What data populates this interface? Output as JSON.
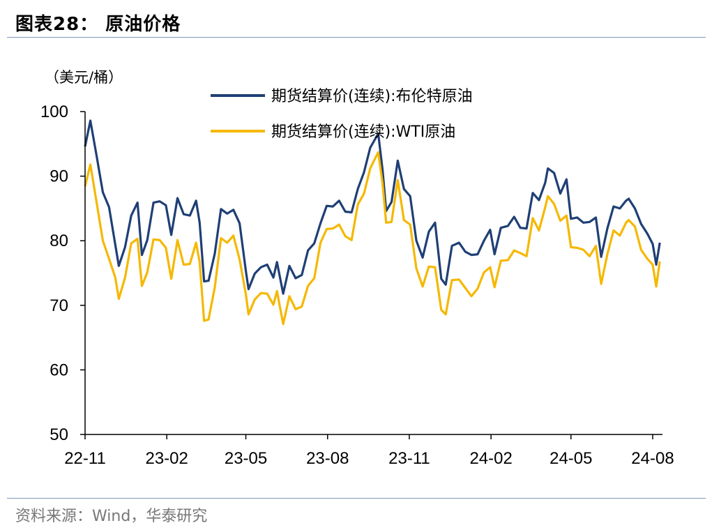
{
  "figure": {
    "title": "图表28：  原油价格",
    "source": "资料来源：Wind，华泰研究"
  },
  "colors": {
    "brent": "#1f3f75",
    "wti": "#f5b800",
    "axis": "#000000",
    "rule": "#7f98b8"
  },
  "chart_data": {
    "type": "line",
    "title": "",
    "ylabel": "（美元/桶）",
    "xlabel": "",
    "ylim": [
      50,
      100
    ],
    "yticks": [
      50,
      60,
      70,
      80,
      90,
      100
    ],
    "xlim": [
      "2022-11-01",
      "2024-08-12"
    ],
    "xticks": [
      {
        "date": "2022-11-01",
        "label": "22-11"
      },
      {
        "date": "2023-02-01",
        "label": "23-02"
      },
      {
        "date": "2023-05-01",
        "label": "23-05"
      },
      {
        "date": "2023-08-01",
        "label": "23-08"
      },
      {
        "date": "2023-11-01",
        "label": "23-11"
      },
      {
        "date": "2024-02-01",
        "label": "24-02"
      },
      {
        "date": "2024-05-01",
        "label": "24-05"
      },
      {
        "date": "2024-08-01",
        "label": "24-08"
      }
    ],
    "grid": false,
    "legend": "top-center",
    "series": [
      {
        "name": "期货结算价(连续):布伦特原油",
        "color": "#1f3f75",
        "points": [
          [
            "2022-11-01",
            94.6
          ],
          [
            "2022-11-07",
            98.6
          ],
          [
            "2022-11-14",
            93.1
          ],
          [
            "2022-11-21",
            87.5
          ],
          [
            "2022-11-28",
            85.2
          ],
          [
            "2022-12-05",
            79.4
          ],
          [
            "2022-12-09",
            76.1
          ],
          [
            "2022-12-16",
            79.0
          ],
          [
            "2022-12-23",
            83.9
          ],
          [
            "2022-12-30",
            85.9
          ],
          [
            "2023-01-04",
            77.8
          ],
          [
            "2023-01-10",
            80.1
          ],
          [
            "2023-01-17",
            85.9
          ],
          [
            "2023-01-24",
            86.1
          ],
          [
            "2023-01-31",
            85.5
          ],
          [
            "2023-02-06",
            80.9
          ],
          [
            "2023-02-13",
            86.6
          ],
          [
            "2023-02-20",
            84.1
          ],
          [
            "2023-02-27",
            83.9
          ],
          [
            "2023-03-06",
            86.2
          ],
          [
            "2023-03-10",
            82.8
          ],
          [
            "2023-03-15",
            73.7
          ],
          [
            "2023-03-20",
            73.8
          ],
          [
            "2023-03-27",
            78.0
          ],
          [
            "2023-04-03",
            84.9
          ],
          [
            "2023-04-10",
            84.2
          ],
          [
            "2023-04-17",
            84.8
          ],
          [
            "2023-04-24",
            82.7
          ],
          [
            "2023-05-01",
            75.3
          ],
          [
            "2023-05-04",
            72.5
          ],
          [
            "2023-05-11",
            74.9
          ],
          [
            "2023-05-18",
            75.9
          ],
          [
            "2023-05-25",
            76.3
          ],
          [
            "2023-06-01",
            74.3
          ],
          [
            "2023-06-05",
            76.7
          ],
          [
            "2023-06-12",
            71.8
          ],
          [
            "2023-06-19",
            76.1
          ],
          [
            "2023-06-26",
            74.2
          ],
          [
            "2023-07-03",
            74.7
          ],
          [
            "2023-07-10",
            78.5
          ],
          [
            "2023-07-17",
            79.6
          ],
          [
            "2023-07-24",
            82.7
          ],
          [
            "2023-07-31",
            85.4
          ],
          [
            "2023-08-07",
            85.3
          ],
          [
            "2023-08-14",
            86.2
          ],
          [
            "2023-08-21",
            84.5
          ],
          [
            "2023-08-28",
            84.4
          ],
          [
            "2023-09-04",
            88.0
          ],
          [
            "2023-09-11",
            90.6
          ],
          [
            "2023-09-18",
            94.4
          ],
          [
            "2023-09-27",
            96.6
          ],
          [
            "2023-10-02",
            90.9
          ],
          [
            "2023-10-06",
            84.6
          ],
          [
            "2023-10-12",
            86.0
          ],
          [
            "2023-10-19",
            92.4
          ],
          [
            "2023-10-26",
            88.0
          ],
          [
            "2023-11-02",
            86.9
          ],
          [
            "2023-11-09",
            80.0
          ],
          [
            "2023-11-16",
            77.4
          ],
          [
            "2023-11-23",
            81.4
          ],
          [
            "2023-11-30",
            82.8
          ],
          [
            "2023-12-07",
            74.1
          ],
          [
            "2023-12-12",
            73.2
          ],
          [
            "2023-12-19",
            79.2
          ],
          [
            "2023-12-27",
            79.7
          ],
          [
            "2024-01-03",
            78.3
          ],
          [
            "2024-01-10",
            77.8
          ],
          [
            "2024-01-17",
            77.9
          ],
          [
            "2024-01-24",
            80.0
          ],
          [
            "2024-01-31",
            81.7
          ],
          [
            "2024-02-05",
            77.9
          ],
          [
            "2024-02-12",
            82.0
          ],
          [
            "2024-02-20",
            82.3
          ],
          [
            "2024-02-27",
            83.7
          ],
          [
            "2024-03-05",
            82.0
          ],
          [
            "2024-03-12",
            81.9
          ],
          [
            "2024-03-19",
            87.4
          ],
          [
            "2024-03-26",
            86.3
          ],
          [
            "2024-04-02",
            89.0
          ],
          [
            "2024-04-05",
            91.2
          ],
          [
            "2024-04-12",
            90.5
          ],
          [
            "2024-04-19",
            87.3
          ],
          [
            "2024-04-26",
            89.5
          ],
          [
            "2024-05-01",
            83.4
          ],
          [
            "2024-05-08",
            83.6
          ],
          [
            "2024-05-15",
            82.8
          ],
          [
            "2024-05-22",
            82.9
          ],
          [
            "2024-05-29",
            83.6
          ],
          [
            "2024-06-04",
            77.5
          ],
          [
            "2024-06-11",
            81.9
          ],
          [
            "2024-06-18",
            85.3
          ],
          [
            "2024-06-25",
            85.0
          ],
          [
            "2024-07-02",
            86.2
          ],
          [
            "2024-07-05",
            86.5
          ],
          [
            "2024-07-12",
            85.0
          ],
          [
            "2024-07-19",
            82.6
          ],
          [
            "2024-07-26",
            81.1
          ],
          [
            "2024-08-01",
            79.5
          ],
          [
            "2024-08-05",
            76.3
          ],
          [
            "2024-08-09",
            79.7
          ]
        ]
      },
      {
        "name": "期货结算价(连续):WTI原油",
        "color": "#f5b800",
        "points": [
          [
            "2022-11-01",
            88.4
          ],
          [
            "2022-11-07",
            91.8
          ],
          [
            "2022-11-14",
            85.9
          ],
          [
            "2022-11-21",
            80.0
          ],
          [
            "2022-11-28",
            77.2
          ],
          [
            "2022-12-05",
            74.3
          ],
          [
            "2022-12-09",
            71.0
          ],
          [
            "2022-12-16",
            74.3
          ],
          [
            "2022-12-23",
            79.6
          ],
          [
            "2022-12-30",
            80.3
          ],
          [
            "2023-01-04",
            73.0
          ],
          [
            "2023-01-10",
            75.1
          ],
          [
            "2023-01-17",
            80.2
          ],
          [
            "2023-01-24",
            80.1
          ],
          [
            "2023-01-31",
            78.9
          ],
          [
            "2023-02-06",
            74.1
          ],
          [
            "2023-02-13",
            80.1
          ],
          [
            "2023-02-20",
            76.3
          ],
          [
            "2023-02-27",
            76.4
          ],
          [
            "2023-03-06",
            79.7
          ],
          [
            "2023-03-10",
            76.7
          ],
          [
            "2023-03-15",
            67.6
          ],
          [
            "2023-03-20",
            67.8
          ],
          [
            "2023-03-27",
            72.8
          ],
          [
            "2023-04-03",
            80.4
          ],
          [
            "2023-04-10",
            79.7
          ],
          [
            "2023-04-17",
            80.8
          ],
          [
            "2023-04-24",
            77.1
          ],
          [
            "2023-05-01",
            71.7
          ],
          [
            "2023-05-04",
            68.6
          ],
          [
            "2023-05-11",
            70.9
          ],
          [
            "2023-05-18",
            71.9
          ],
          [
            "2023-05-25",
            71.8
          ],
          [
            "2023-06-01",
            70.1
          ],
          [
            "2023-06-05",
            72.2
          ],
          [
            "2023-06-12",
            67.1
          ],
          [
            "2023-06-19",
            71.4
          ],
          [
            "2023-06-26",
            69.4
          ],
          [
            "2023-07-03",
            69.8
          ],
          [
            "2023-07-10",
            73.0
          ],
          [
            "2023-07-17",
            74.2
          ],
          [
            "2023-07-24",
            79.7
          ],
          [
            "2023-07-31",
            81.8
          ],
          [
            "2023-08-07",
            81.9
          ],
          [
            "2023-08-14",
            82.5
          ],
          [
            "2023-08-21",
            80.7
          ],
          [
            "2023-08-28",
            80.1
          ],
          [
            "2023-09-04",
            85.6
          ],
          [
            "2023-09-11",
            87.3
          ],
          [
            "2023-09-18",
            91.2
          ],
          [
            "2023-09-27",
            93.7
          ],
          [
            "2023-10-02",
            88.8
          ],
          [
            "2023-10-06",
            82.8
          ],
          [
            "2023-10-12",
            82.9
          ],
          [
            "2023-10-19",
            89.4
          ],
          [
            "2023-10-26",
            83.2
          ],
          [
            "2023-11-02",
            82.5
          ],
          [
            "2023-11-09",
            75.7
          ],
          [
            "2023-11-16",
            72.9
          ],
          [
            "2023-11-23",
            76.0
          ],
          [
            "2023-11-30",
            75.9
          ],
          [
            "2023-12-07",
            69.3
          ],
          [
            "2023-12-12",
            68.6
          ],
          [
            "2023-12-19",
            73.9
          ],
          [
            "2023-12-27",
            74.0
          ],
          [
            "2024-01-03",
            72.7
          ],
          [
            "2024-01-10",
            71.4
          ],
          [
            "2024-01-17",
            72.6
          ],
          [
            "2024-01-24",
            75.1
          ],
          [
            "2024-01-31",
            75.9
          ],
          [
            "2024-02-05",
            72.8
          ],
          [
            "2024-02-12",
            76.9
          ],
          [
            "2024-02-20",
            77.0
          ],
          [
            "2024-02-27",
            78.5
          ],
          [
            "2024-03-05",
            78.1
          ],
          [
            "2024-03-12",
            77.6
          ],
          [
            "2024-03-19",
            83.5
          ],
          [
            "2024-03-26",
            81.6
          ],
          [
            "2024-04-02",
            85.2
          ],
          [
            "2024-04-05",
            86.9
          ],
          [
            "2024-04-12",
            85.7
          ],
          [
            "2024-04-19",
            83.1
          ],
          [
            "2024-04-26",
            83.9
          ],
          [
            "2024-05-01",
            79.0
          ],
          [
            "2024-05-08",
            78.9
          ],
          [
            "2024-05-15",
            78.6
          ],
          [
            "2024-05-22",
            77.6
          ],
          [
            "2024-05-29",
            79.2
          ],
          [
            "2024-06-04",
            73.3
          ],
          [
            "2024-06-11",
            77.9
          ],
          [
            "2024-06-18",
            81.6
          ],
          [
            "2024-06-25",
            80.8
          ],
          [
            "2024-07-02",
            82.8
          ],
          [
            "2024-07-05",
            83.2
          ],
          [
            "2024-07-12",
            82.2
          ],
          [
            "2024-07-19",
            78.6
          ],
          [
            "2024-07-26",
            77.2
          ],
          [
            "2024-08-01",
            76.3
          ],
          [
            "2024-08-05",
            72.9
          ],
          [
            "2024-08-09",
            76.8
          ]
        ]
      }
    ]
  }
}
